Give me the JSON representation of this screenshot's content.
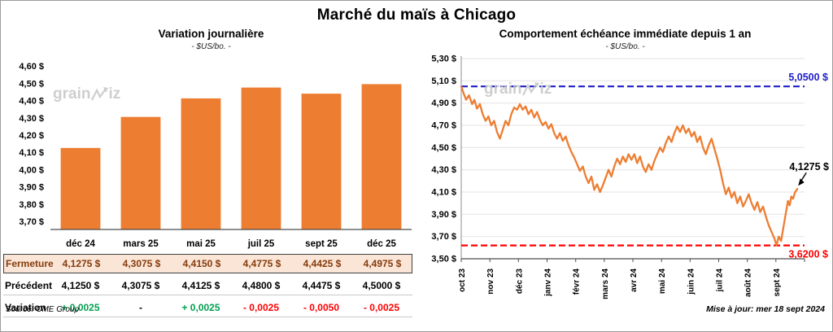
{
  "page": {
    "title": "Marché du maïs à Chicago",
    "source": "Source: CME Group",
    "updated": "Mise à jour: mer 18 sept 2024",
    "watermark_pre": "grain",
    "watermark_post": "iz"
  },
  "table": {
    "rows": [
      {
        "label": "Fermeture",
        "cls": "fermeture",
        "values": [
          "4,1275 $",
          "4,3075 $",
          "4,4150 $",
          "4,4775 $",
          "4,4425 $",
          "4,4975 $"
        ]
      },
      {
        "label": "Précédent",
        "cls": "precedent",
        "values": [
          "4,1250 $",
          "4,3075 $",
          "4,4125 $",
          "4,4800 $",
          "4,4475 $",
          "4,5000 $"
        ]
      },
      {
        "label": "Variation",
        "cls": "variation",
        "values": [
          "+ 0,0025",
          "-",
          "+ 0,0025",
          "- 0,0025",
          "- 0,0050",
          "- 0,0025"
        ],
        "value_classes": [
          "pos",
          "neu",
          "pos",
          "neg",
          "neg",
          "neg"
        ]
      }
    ]
  },
  "chart_data": [
    {
      "type": "bar",
      "title": "Variation journalière",
      "subtitle": "- $US/bo. -",
      "categories": [
        "déc 24",
        "mars 25",
        "mai 25",
        "juil 25",
        "sept 25",
        "déc 25"
      ],
      "values": [
        4.1275,
        4.3075,
        4.415,
        4.4775,
        4.4425,
        4.4975
      ],
      "ylim": [
        3.655,
        4.655
      ],
      "yticks": [
        {
          "v": 4.6,
          "label": "4,60 $"
        },
        {
          "v": 4.5,
          "label": "4,50 $"
        },
        {
          "v": 4.4,
          "label": "4,40 $"
        },
        {
          "v": 4.3,
          "label": "4,30 $"
        },
        {
          "v": 4.2,
          "label": "4,20 $"
        },
        {
          "v": 4.1,
          "label": "4,10 $"
        },
        {
          "v": 4.0,
          "label": "4,00 $"
        },
        {
          "v": 3.9,
          "label": "3,90 $"
        },
        {
          "v": 3.8,
          "label": "3,80 $"
        },
        {
          "v": 3.7,
          "label": "3,70 $"
        }
      ],
      "bar_color": "#ED7D31",
      "grid": false
    },
    {
      "type": "line",
      "title": "Comportement échéance immédiate depuis 1 an",
      "subtitle": "- $US/bo. -",
      "x_labels": [
        "oct 23",
        "nov 23",
        "déc 23",
        "janv 24",
        "févr 24",
        "mars 24",
        "avr 24",
        "mai 24",
        "juin 24",
        "juil 24",
        "août 24",
        "sept 24"
      ],
      "ylim": [
        3.5,
        5.3
      ],
      "yticks": [
        {
          "v": 5.3,
          "label": "5,30 $"
        },
        {
          "v": 5.1,
          "label": "5,10 $"
        },
        {
          "v": 4.9,
          "label": "4,90 $"
        },
        {
          "v": 4.7,
          "label": "4,70 $"
        },
        {
          "v": 4.5,
          "label": "4,50 $"
        },
        {
          "v": 4.3,
          "label": "4,30 $"
        },
        {
          "v": 4.1,
          "label": "4,10 $"
        },
        {
          "v": 3.9,
          "label": "3,90 $"
        },
        {
          "v": 3.7,
          "label": "3,70 $"
        },
        {
          "v": 3.5,
          "label": "3,50 $"
        }
      ],
      "line_color": "#ED7D31",
      "high_line": {
        "value": 5.05,
        "label": "5,0500 $",
        "color": "#1F1FC8"
      },
      "low_line": {
        "value": 3.62,
        "label": "3,6200 $",
        "color": "#FF0000"
      },
      "last_value": 4.1275,
      "last_label": "4,1275 $",
      "grid": true,
      "points": [
        [
          0.0,
          5.05
        ],
        [
          0.08,
          4.99
        ],
        [
          0.17,
          4.93
        ],
        [
          0.27,
          4.97
        ],
        [
          0.38,
          4.89
        ],
        [
          0.46,
          4.93
        ],
        [
          0.55,
          4.85
        ],
        [
          0.65,
          4.89
        ],
        [
          0.75,
          4.8
        ],
        [
          0.85,
          4.74
        ],
        [
          0.95,
          4.78
        ],
        [
          1.05,
          4.7
        ],
        [
          1.15,
          4.74
        ],
        [
          1.25,
          4.64
        ],
        [
          1.35,
          4.58
        ],
        [
          1.45,
          4.66
        ],
        [
          1.55,
          4.74
        ],
        [
          1.65,
          4.7
        ],
        [
          1.75,
          4.8
        ],
        [
          1.85,
          4.86
        ],
        [
          1.95,
          4.84
        ],
        [
          2.05,
          4.89
        ],
        [
          2.15,
          4.84
        ],
        [
          2.25,
          4.87
        ],
        [
          2.35,
          4.8
        ],
        [
          2.45,
          4.84
        ],
        [
          2.55,
          4.77
        ],
        [
          2.65,
          4.82
        ],
        [
          2.75,
          4.75
        ],
        [
          2.85,
          4.7
        ],
        [
          2.95,
          4.73
        ],
        [
          3.05,
          4.67
        ],
        [
          3.15,
          4.71
        ],
        [
          3.25,
          4.63
        ],
        [
          3.35,
          4.58
        ],
        [
          3.45,
          4.63
        ],
        [
          3.55,
          4.56
        ],
        [
          3.65,
          4.6
        ],
        [
          3.75,
          4.52
        ],
        [
          3.85,
          4.46
        ],
        [
          3.95,
          4.41
        ],
        [
          4.05,
          4.35
        ],
        [
          4.15,
          4.29
        ],
        [
          4.25,
          4.33
        ],
        [
          4.35,
          4.24
        ],
        [
          4.45,
          4.18
        ],
        [
          4.55,
          4.24
        ],
        [
          4.65,
          4.12
        ],
        [
          4.75,
          4.17
        ],
        [
          4.85,
          4.1
        ],
        [
          4.95,
          4.16
        ],
        [
          5.05,
          4.23
        ],
        [
          5.15,
          4.3
        ],
        [
          5.25,
          4.24
        ],
        [
          5.35,
          4.33
        ],
        [
          5.45,
          4.4
        ],
        [
          5.55,
          4.35
        ],
        [
          5.65,
          4.42
        ],
        [
          5.75,
          4.37
        ],
        [
          5.85,
          4.44
        ],
        [
          5.95,
          4.39
        ],
        [
          6.05,
          4.44
        ],
        [
          6.15,
          4.36
        ],
        [
          6.25,
          4.42
        ],
        [
          6.35,
          4.33
        ],
        [
          6.45,
          4.28
        ],
        [
          6.55,
          4.35
        ],
        [
          6.65,
          4.3
        ],
        [
          6.75,
          4.38
        ],
        [
          6.85,
          4.44
        ],
        [
          6.95,
          4.5
        ],
        [
          7.05,
          4.46
        ],
        [
          7.15,
          4.54
        ],
        [
          7.25,
          4.6
        ],
        [
          7.35,
          4.55
        ],
        [
          7.45,
          4.63
        ],
        [
          7.55,
          4.69
        ],
        [
          7.65,
          4.64
        ],
        [
          7.75,
          4.7
        ],
        [
          7.85,
          4.63
        ],
        [
          7.95,
          4.67
        ],
        [
          8.05,
          4.6
        ],
        [
          8.15,
          4.64
        ],
        [
          8.25,
          4.55
        ],
        [
          8.35,
          4.6
        ],
        [
          8.45,
          4.5
        ],
        [
          8.55,
          4.44
        ],
        [
          8.65,
          4.52
        ],
        [
          8.75,
          4.58
        ],
        [
          8.85,
          4.49
        ],
        [
          8.95,
          4.4
        ],
        [
          9.05,
          4.3
        ],
        [
          9.15,
          4.18
        ],
        [
          9.25,
          4.08
        ],
        [
          9.35,
          4.14
        ],
        [
          9.45,
          4.05
        ],
        [
          9.55,
          4.1
        ],
        [
          9.65,
          4.0
        ],
        [
          9.75,
          4.06
        ],
        [
          9.85,
          3.97
        ],
        [
          9.95,
          4.02
        ],
        [
          10.05,
          4.08
        ],
        [
          10.15,
          4.0
        ],
        [
          10.25,
          3.94
        ],
        [
          10.35,
          4.01
        ],
        [
          10.45,
          3.92
        ],
        [
          10.55,
          3.97
        ],
        [
          10.65,
          3.88
        ],
        [
          10.75,
          3.8
        ],
        [
          10.85,
          3.74
        ],
        [
          10.95,
          3.68
        ],
        [
          11.02,
          3.62
        ],
        [
          11.1,
          3.7
        ],
        [
          11.18,
          3.66
        ],
        [
          11.26,
          3.78
        ],
        [
          11.34,
          3.9
        ],
        [
          11.42,
          4.02
        ],
        [
          11.48,
          3.98
        ],
        [
          11.54,
          4.06
        ],
        [
          11.6,
          4.04
        ],
        [
          11.67,
          4.1
        ],
        [
          11.75,
          4.1275
        ]
      ]
    }
  ]
}
